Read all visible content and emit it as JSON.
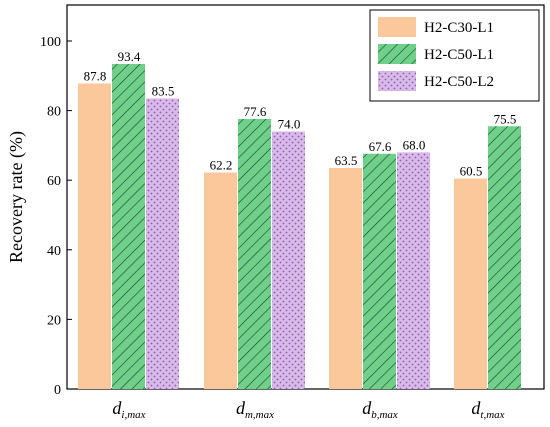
{
  "chart_data": {
    "type": "bar",
    "ylabel": "Recovery rate (%)",
    "ylim": [
      0,
      100
    ],
    "yticks": [
      0,
      20,
      40,
      60,
      80,
      100
    ],
    "grid": false,
    "legend_position": "top-right",
    "categories": [
      {
        "main": "d",
        "sub": "i,max"
      },
      {
        "main": "d",
        "sub": "m,max"
      },
      {
        "main": "d",
        "sub": "b,max"
      },
      {
        "main": "d",
        "sub": "t,max"
      }
    ],
    "series": [
      {
        "name": "H2-C30-L1",
        "values": [
          87.8,
          62.2,
          63.5,
          60.5
        ],
        "labels": [
          "87.8",
          "62.2",
          "63.5",
          "60.5"
        ],
        "color": "#fbc89b",
        "pattern": "solid"
      },
      {
        "name": "H2-C50-L1",
        "values": [
          93.4,
          77.6,
          67.6,
          75.5
        ],
        "labels": [
          "93.4",
          "77.6",
          "67.6",
          "75.5"
        ],
        "color": "#6fd08a",
        "pattern": "hatch"
      },
      {
        "name": "H2-C50-L2",
        "values": [
          83.5,
          74.0,
          68.0,
          null
        ],
        "labels": [
          "83.5",
          "74.0",
          "68.0",
          null
        ],
        "color": "#d9b8ea",
        "pattern": "dots"
      }
    ]
  }
}
